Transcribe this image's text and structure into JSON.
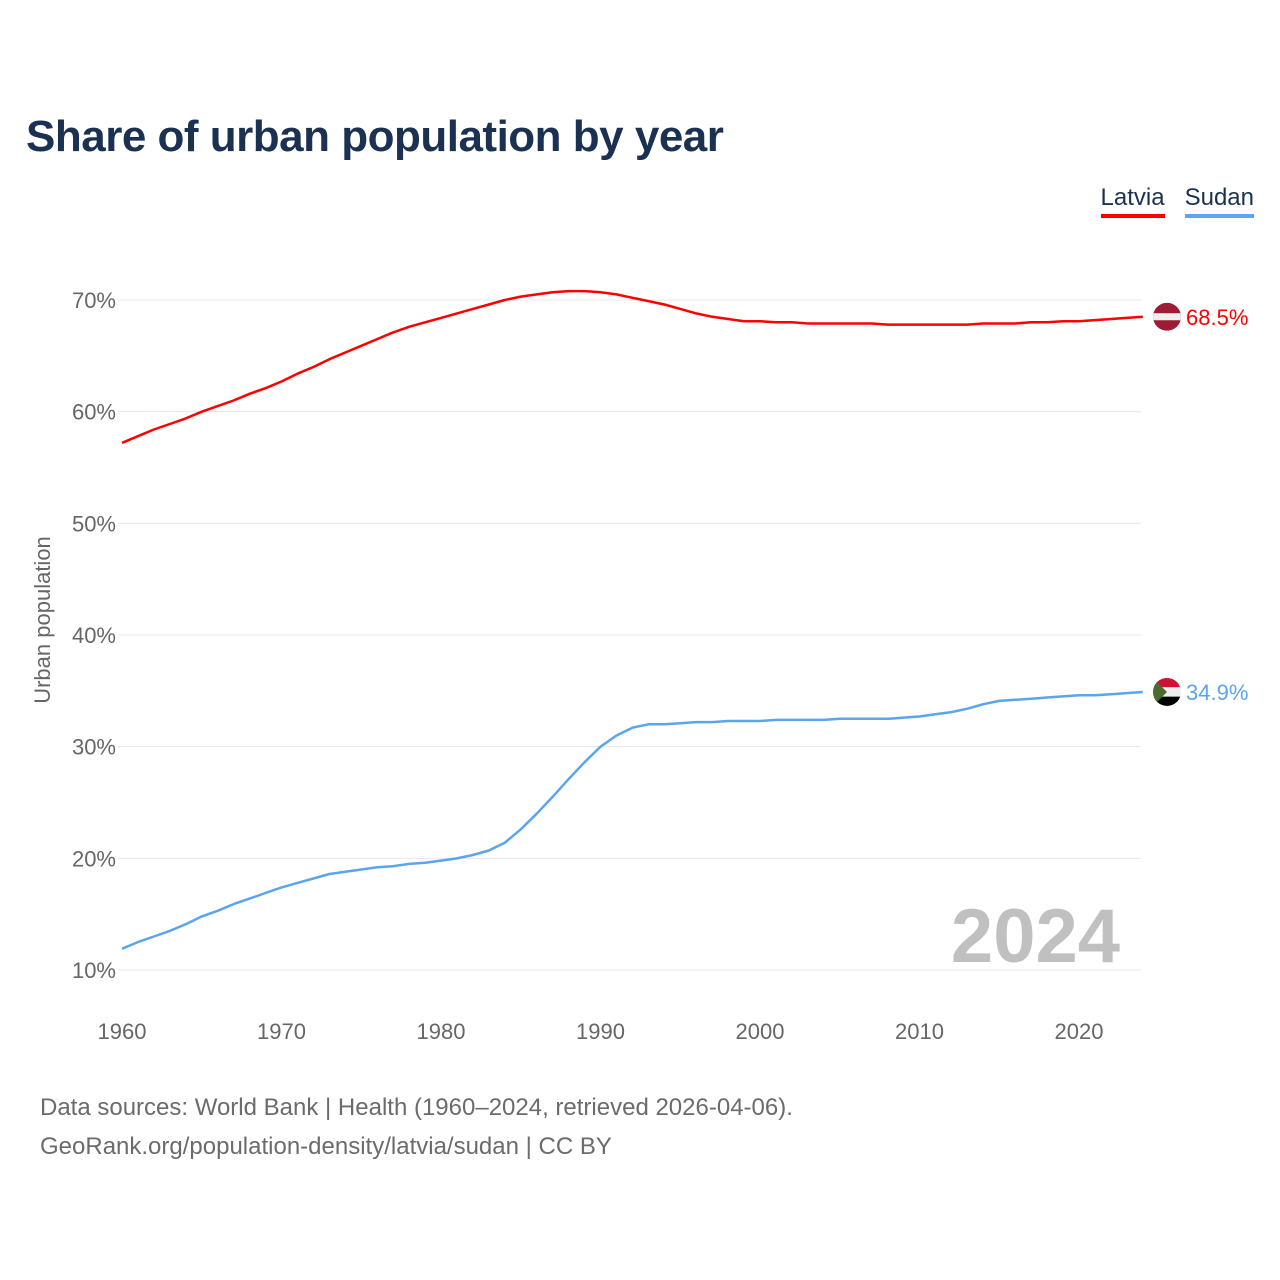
{
  "title": "Share of urban population by year",
  "legend": [
    "Latvia",
    "Sudan"
  ],
  "footer": {
    "line1": "Data sources: World Bank | Health (1960–2024, retrieved 2026-04-06).",
    "line2": "GeoRank.org/population-density/latvia/sudan | CC BY"
  },
  "chart_data": {
    "type": "line",
    "title": "Share of urban population by year",
    "xlabel": "",
    "ylabel": "Urban population",
    "year_watermark": "2024",
    "xlim": [
      1960,
      2024
    ],
    "ylim": [
      10,
      72
    ],
    "x_ticks": [
      1960,
      1970,
      1980,
      1990,
      2000,
      2010,
      2020
    ],
    "y_ticks": [
      10,
      20,
      30,
      40,
      50,
      60,
      70
    ],
    "y_tick_labels": [
      "10%",
      "20%",
      "30%",
      "40%",
      "50%",
      "60%",
      "70%"
    ],
    "grid": true,
    "legend_position": "top-right",
    "x": [
      1960,
      1961,
      1962,
      1963,
      1964,
      1965,
      1966,
      1967,
      1968,
      1969,
      1970,
      1971,
      1972,
      1973,
      1974,
      1975,
      1976,
      1977,
      1978,
      1979,
      1980,
      1981,
      1982,
      1983,
      1984,
      1985,
      1986,
      1987,
      1988,
      1989,
      1990,
      1991,
      1992,
      1993,
      1994,
      1995,
      1996,
      1997,
      1998,
      1999,
      2000,
      2001,
      2002,
      2003,
      2004,
      2005,
      2006,
      2007,
      2008,
      2009,
      2010,
      2011,
      2012,
      2013,
      2014,
      2015,
      2016,
      2017,
      2018,
      2019,
      2020,
      2021,
      2022,
      2023,
      2024
    ],
    "series": [
      {
        "name": "Latvia",
        "color": "#ff0000",
        "end_label": "68.5%",
        "values": [
          57.2,
          57.8,
          58.4,
          58.9,
          59.4,
          60.0,
          60.5,
          61.0,
          61.6,
          62.1,
          62.7,
          63.4,
          64.0,
          64.7,
          65.3,
          65.9,
          66.5,
          67.1,
          67.6,
          68.0,
          68.4,
          68.8,
          69.2,
          69.6,
          70.0,
          70.3,
          70.5,
          70.7,
          70.8,
          70.8,
          70.7,
          70.5,
          70.2,
          69.9,
          69.6,
          69.2,
          68.8,
          68.5,
          68.3,
          68.1,
          68.1,
          68.0,
          68.0,
          67.9,
          67.9,
          67.9,
          67.9,
          67.9,
          67.8,
          67.8,
          67.8,
          67.8,
          67.8,
          67.8,
          67.9,
          67.9,
          67.9,
          68.0,
          68.0,
          68.1,
          68.1,
          68.2,
          68.3,
          68.4,
          68.5
        ]
      },
      {
        "name": "Sudan",
        "color": "#5ba4ee",
        "end_label": "34.9%",
        "values": [
          11.9,
          12.5,
          13.0,
          13.5,
          14.1,
          14.8,
          15.3,
          15.9,
          16.4,
          16.9,
          17.4,
          17.8,
          18.2,
          18.6,
          18.8,
          19.0,
          19.2,
          19.3,
          19.5,
          19.6,
          19.8,
          20.0,
          20.3,
          20.7,
          21.4,
          22.6,
          24.0,
          25.5,
          27.1,
          28.6,
          30.0,
          31.0,
          31.7,
          32.0,
          32.0,
          32.1,
          32.2,
          32.2,
          32.3,
          32.3,
          32.3,
          32.4,
          32.4,
          32.4,
          32.4,
          32.5,
          32.5,
          32.5,
          32.5,
          32.6,
          32.7,
          32.9,
          33.1,
          33.4,
          33.8,
          34.1,
          34.2,
          34.3,
          34.4,
          34.5,
          34.6,
          34.6,
          34.7,
          34.8,
          34.9
        ]
      }
    ]
  }
}
